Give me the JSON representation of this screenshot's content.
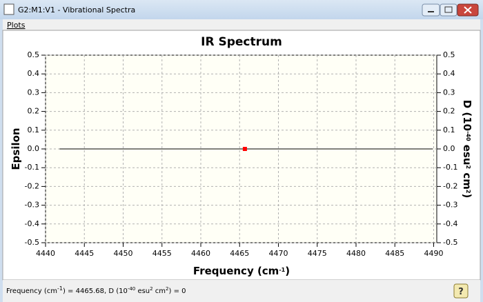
{
  "window": {
    "title": "G2:M1:V1 - Vibrational Spectra",
    "menu": [
      "Plots"
    ]
  },
  "chart_data": {
    "type": "line",
    "title": "IR Spectrum",
    "xlabel": [
      "Frequency (cm",
      "-1",
      ")"
    ],
    "ylabel": "Epsilon",
    "y2label": [
      "D (10",
      "-40",
      " esu",
      "2",
      " cm",
      "2",
      ")"
    ],
    "xlim": [
      4440,
      4490.4
    ],
    "xticks": [
      4440,
      4445,
      4450,
      4455,
      4460,
      4465,
      4470,
      4475,
      4480,
      4485,
      4490
    ],
    "ylim": [
      -0.5,
      0.5
    ],
    "yticks": [
      -0.5,
      -0.4,
      -0.3,
      -0.2,
      -0.1,
      {
        "value": 0,
        "label": "0.0"
      },
      0.1,
      0.2,
      0.3,
      0.4,
      0.5
    ],
    "y2lim": [
      -0.5,
      0.5
    ],
    "y2ticks": [
      -0.5,
      -0.4,
      -0.3,
      -0.2,
      -0.1,
      {
        "value": 0,
        "label": "0.0"
      },
      0.1,
      0.2,
      0.3,
      0.4,
      0.5
    ],
    "grid": true,
    "series": [
      {
        "type": "line",
        "color": "#000000",
        "x": [
          4441.8,
          4489.9
        ],
        "values": [
          0,
          0
        ]
      },
      {
        "type": "scatter",
        "color": "#ff0000",
        "x": [
          4465.68
        ],
        "values": [
          0
        ]
      }
    ]
  },
  "status": [
    "Frequency (cm",
    "-1",
    ") = 4465.68, D (10",
    "-40",
    " esu",
    "2",
    " cm",
    "2",
    ") = 0"
  ]
}
